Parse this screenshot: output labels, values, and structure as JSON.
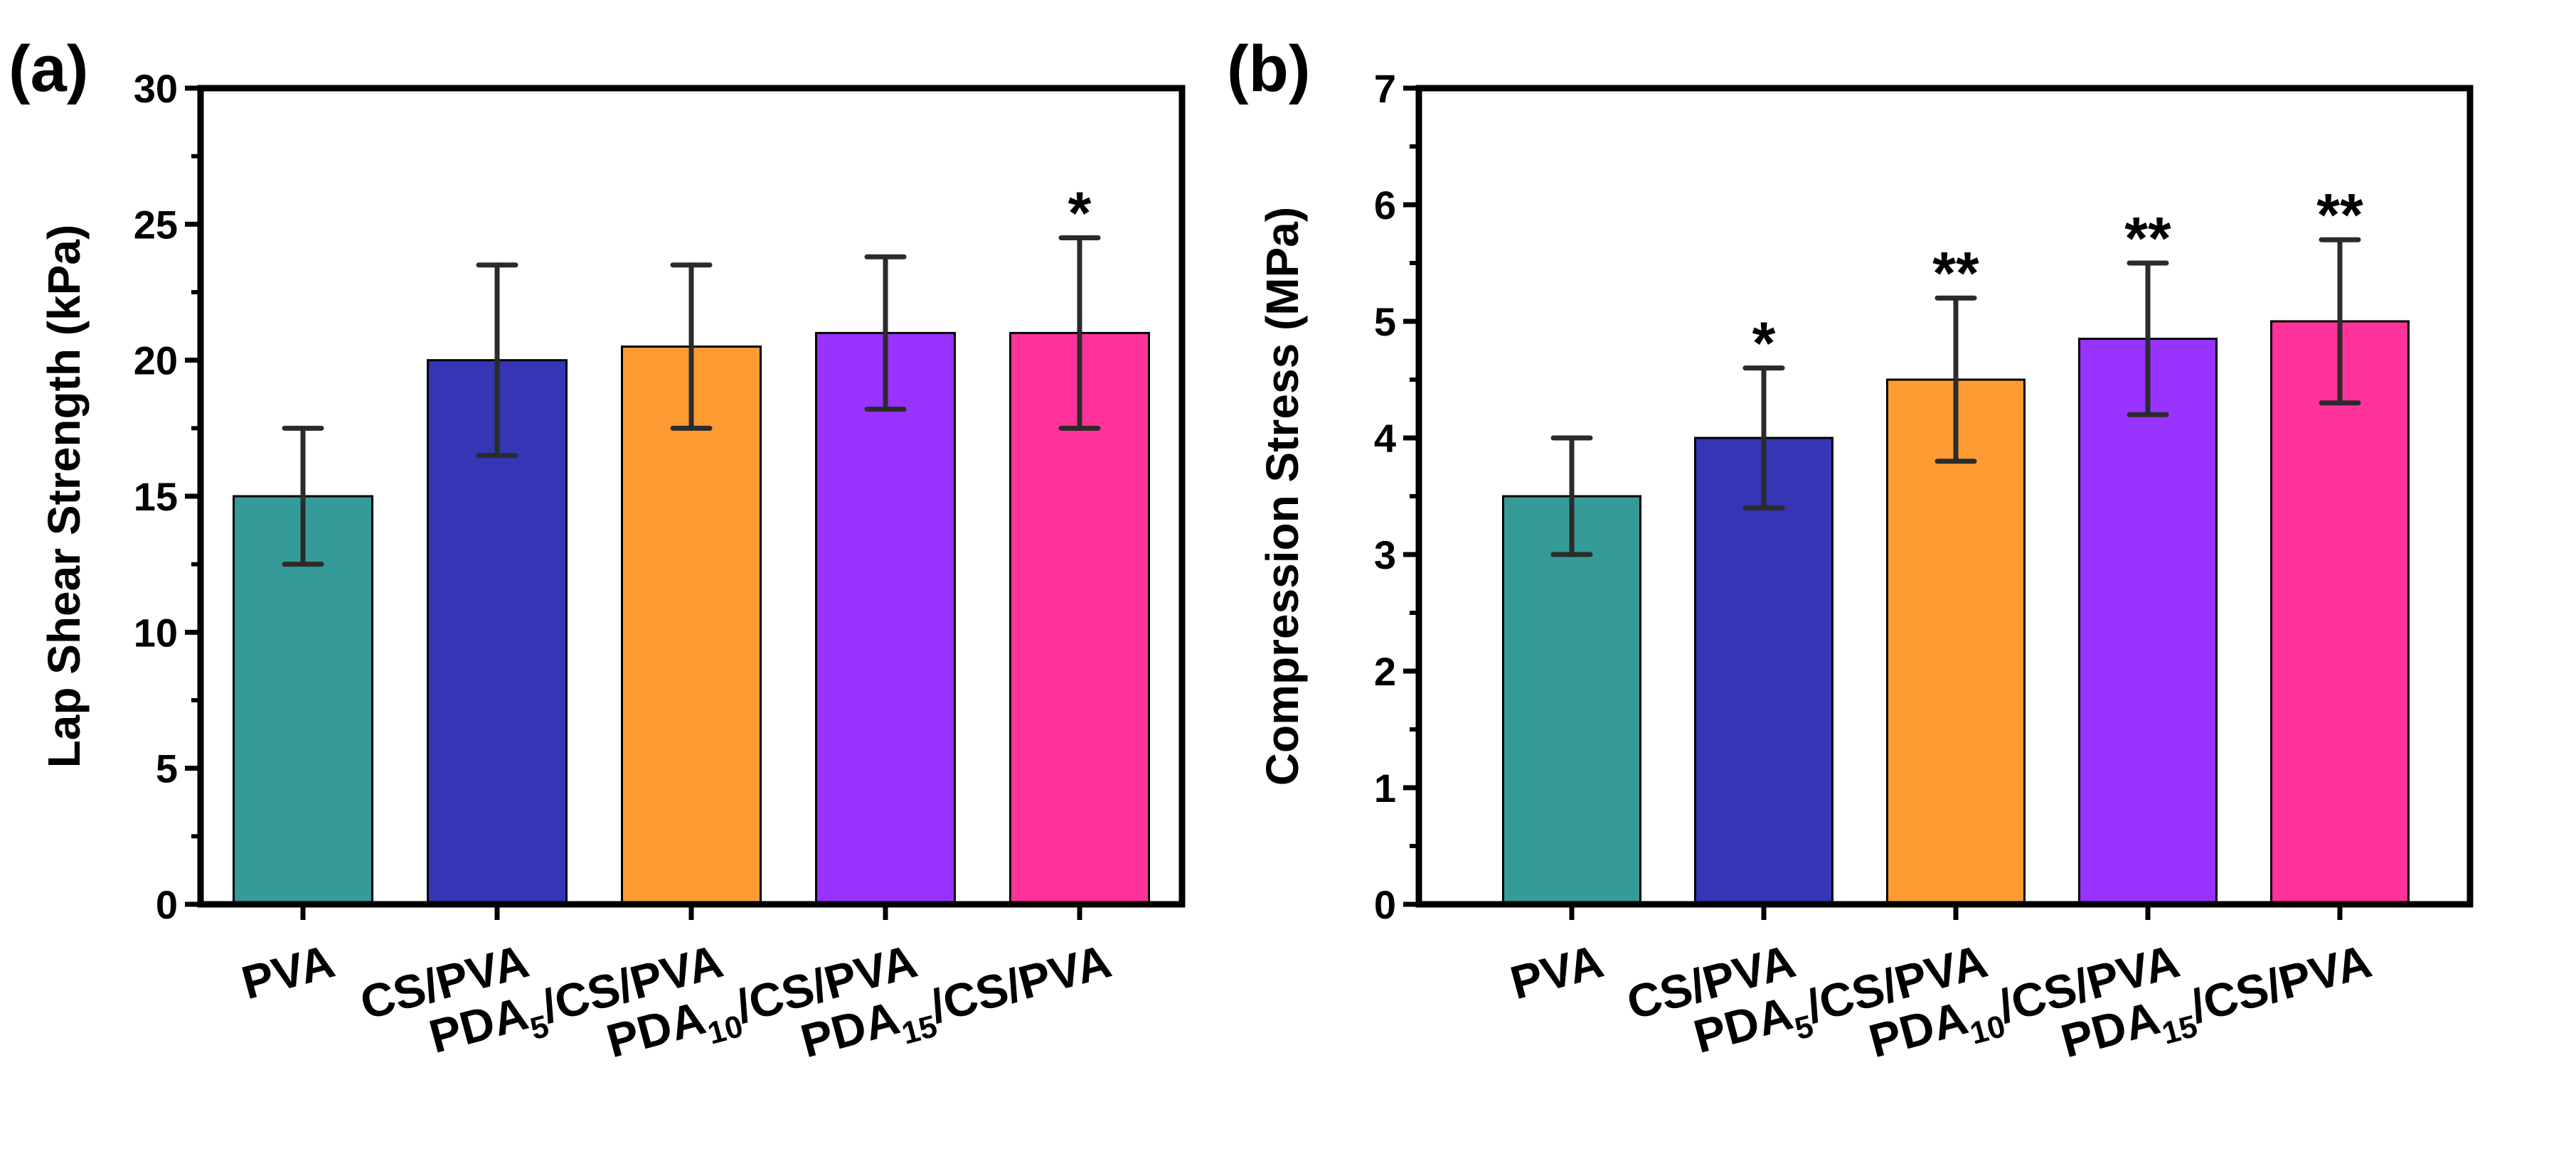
{
  "chart_data": [
    {
      "type": "bar",
      "panel_label": "(a)",
      "categories": [
        "PVA",
        "CS/PVA",
        "PDA5/CS/PVA",
        "PDA10/CS/PVA",
        "PDA15/CS/PVA"
      ],
      "category_labels": [
        {
          "main": "PVA",
          "sub": "",
          "rest": ""
        },
        {
          "main": "CS/PVA",
          "sub": "",
          "rest": ""
        },
        {
          "main": "PDA",
          "sub": "5",
          "rest": "/CS/PVA"
        },
        {
          "main": "PDA",
          "sub": "10",
          "rest": "/CS/PVA"
        },
        {
          "main": "PDA",
          "sub": "15",
          "rest": "/CS/PVA"
        }
      ],
      "values": [
        15.0,
        20.0,
        20.5,
        21.0,
        21.0
      ],
      "error_low": [
        12.5,
        16.5,
        17.5,
        18.2,
        17.5
      ],
      "error_high": [
        17.5,
        23.5,
        23.5,
        23.8,
        24.5
      ],
      "significance": [
        "",
        "",
        "",
        "",
        "*"
      ],
      "colors": [
        "#359b98",
        "#3535b6",
        "#fd9b32",
        "#9933ff",
        "#ff3399"
      ],
      "ylabel": "Lap Shear Strength (kPa)",
      "xlabel": "",
      "ylim": [
        0,
        30
      ],
      "yticks": [
        "0",
        "5",
        "10",
        "15",
        "20",
        "25",
        "30"
      ],
      "ytick_values": [
        0,
        5,
        10,
        15,
        20,
        25,
        30
      ],
      "grid": false
    },
    {
      "type": "bar",
      "panel_label": "(b)",
      "categories": [
        "PVA",
        "CS/PVA",
        "PDA5/CS/PVA",
        "PDA10/CS/PVA",
        "PDA15/CS/PVA"
      ],
      "category_labels": [
        {
          "main": "PVA",
          "sub": "",
          "rest": ""
        },
        {
          "main": "CS/PVA",
          "sub": "",
          "rest": ""
        },
        {
          "main": "PDA",
          "sub": "5",
          "rest": "/CS/PVA"
        },
        {
          "main": "PDA",
          "sub": "10",
          "rest": "/CS/PVA"
        },
        {
          "main": "PDA",
          "sub": "15",
          "rest": "/CS/PVA"
        }
      ],
      "values": [
        3.5,
        4.0,
        4.5,
        4.85,
        5.0
      ],
      "error_low": [
        3.0,
        3.4,
        3.8,
        4.2,
        4.3
      ],
      "error_high": [
        4.0,
        4.6,
        5.2,
        5.5,
        5.7
      ],
      "significance": [
        "",
        "*",
        "**",
        "**",
        "**"
      ],
      "colors": [
        "#359b98",
        "#3535b6",
        "#fd9b32",
        "#9933ff",
        "#ff3399"
      ],
      "ylabel": "Compression Stress (MPa)",
      "xlabel": "",
      "ylim": [
        0,
        7
      ],
      "yticks": [
        "0",
        "1",
        "2",
        "3",
        "4",
        "5",
        "6",
        "7"
      ],
      "ytick_values": [
        0,
        1,
        2,
        3,
        4,
        5,
        6,
        7
      ],
      "grid": false
    }
  ]
}
